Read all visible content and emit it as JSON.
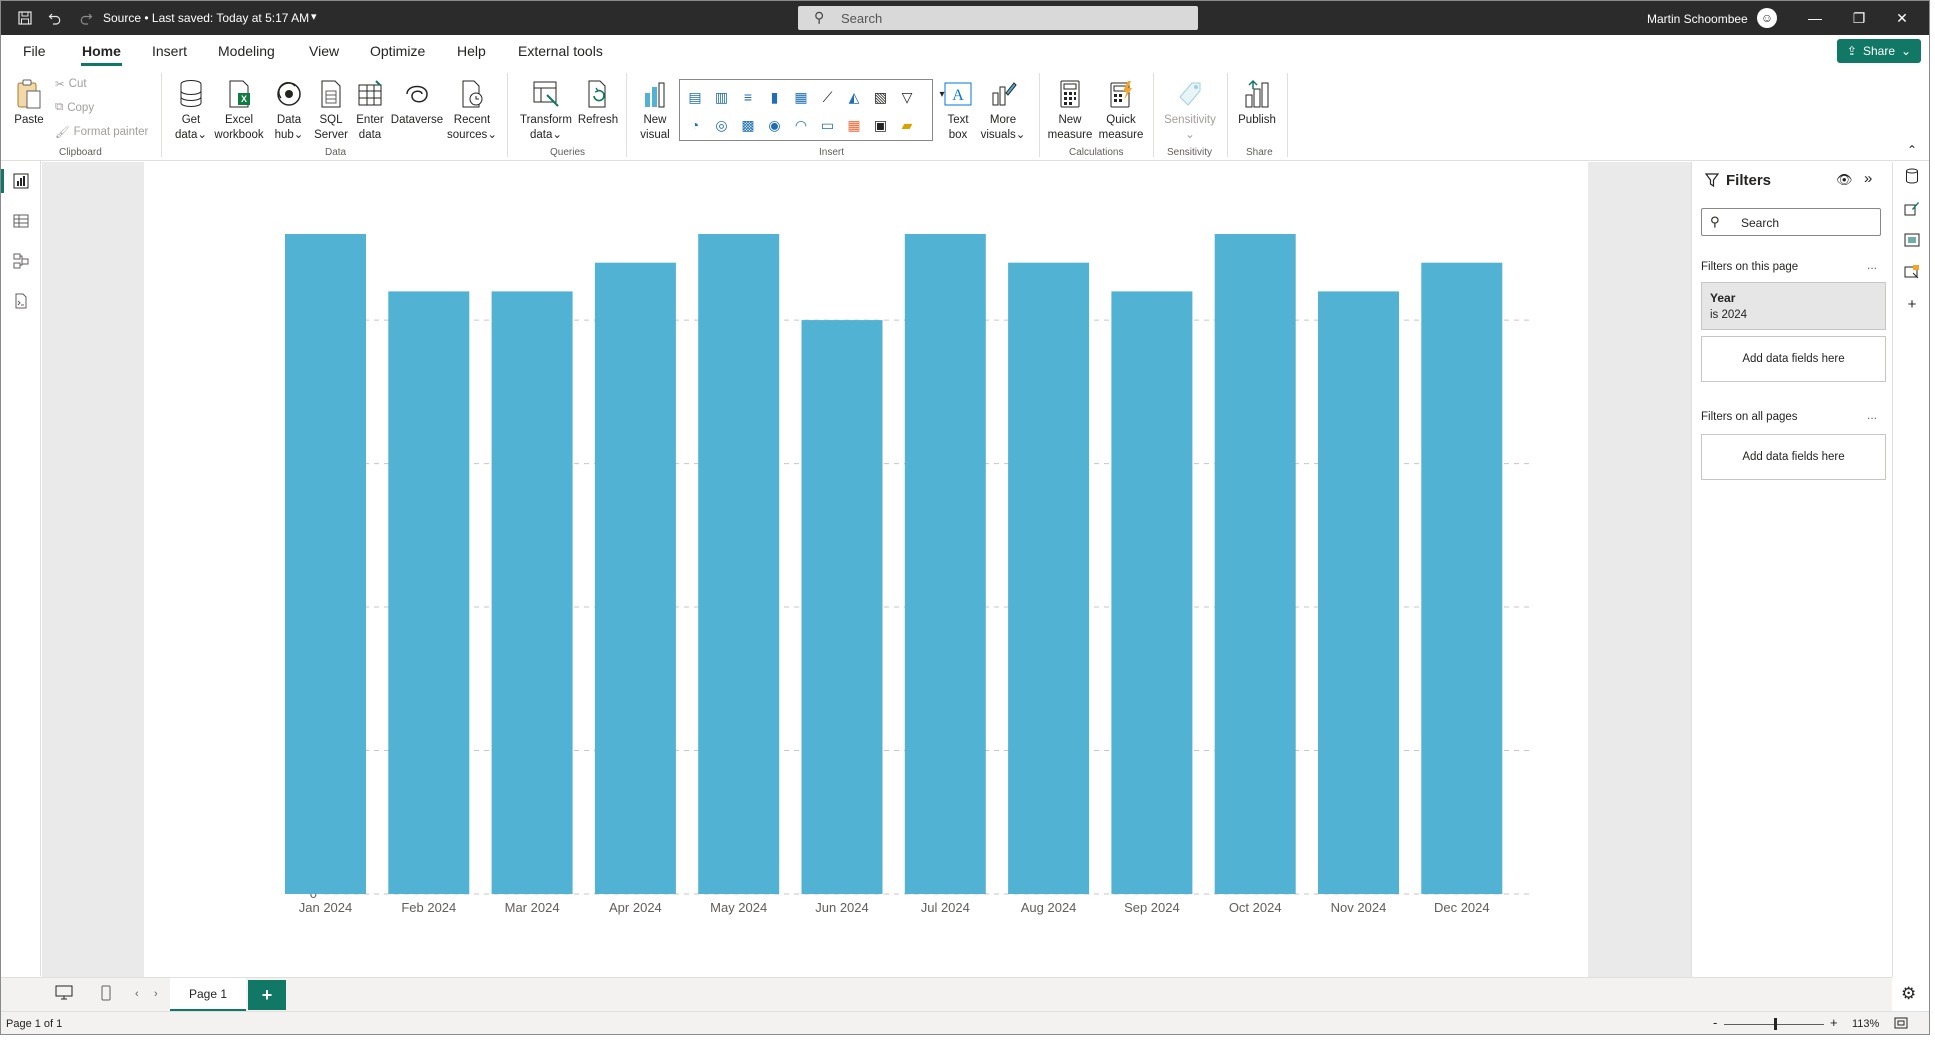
{
  "titlebar": {
    "title": "Source • Last saved: Today at 5:17 AM",
    "search_placeholder": "Search",
    "user_name": "Martin Schoombee"
  },
  "menu": {
    "tabs": [
      "File",
      "Home",
      "Insert",
      "Modeling",
      "View",
      "Optimize",
      "Help",
      "External tools"
    ],
    "active": "Home",
    "share_label": "Share"
  },
  "ribbon": {
    "clipboard": {
      "paste": "Paste",
      "cut": "Cut",
      "copy": "Copy",
      "format_painter": "Format painter",
      "group": "Clipboard"
    },
    "data": {
      "get_data": [
        "Get",
        "data"
      ],
      "excel": [
        "Excel",
        "workbook"
      ],
      "data_hub": [
        "Data",
        "hub"
      ],
      "sql": [
        "SQL",
        "Server"
      ],
      "enter": [
        "Enter",
        "data"
      ],
      "dataverse": [
        "Dataverse"
      ],
      "recent": [
        "Recent",
        "sources"
      ],
      "group": "Data"
    },
    "queries": {
      "transform": [
        "Transform",
        "data"
      ],
      "refresh": [
        "Refresh"
      ],
      "group": "Queries"
    },
    "insert": {
      "new_visual": [
        "New",
        "visual"
      ],
      "text_box": [
        "Text",
        "box"
      ],
      "more_visuals": [
        "More",
        "visuals"
      ],
      "group": "Insert"
    },
    "calculations": {
      "new_measure": [
        "New",
        "measure"
      ],
      "quick_measure": [
        "Quick",
        "measure"
      ],
      "group": "Calculations"
    },
    "sensitivity": {
      "label": [
        "Sensitivity"
      ],
      "group": "Sensitivity"
    },
    "share": {
      "publish": [
        "Publish"
      ],
      "group": "Share"
    }
  },
  "chart_data": {
    "type": "bar",
    "categories": [
      "Jan 2024",
      "Feb 2024",
      "Mar 2024",
      "Apr 2024",
      "May 2024",
      "Jun 2024",
      "Jul 2024",
      "Aug 2024",
      "Sep 2024",
      "Oct 2024",
      "Nov 2024",
      "Dec 2024"
    ],
    "values": [
      23,
      21,
      21,
      22,
      23,
      20,
      23,
      22,
      21,
      23,
      21,
      22
    ],
    "y_ticks": [
      0,
      5,
      10,
      15,
      20
    ],
    "ylim": [
      0,
      23
    ],
    "title": "",
    "xlabel": "",
    "ylabel": "",
    "grid": "dashed horizontal",
    "bar_color": "#51b2d4"
  },
  "filters": {
    "title": "Filters",
    "search_placeholder": "Search",
    "on_this_page": "Filters on this page",
    "year_card_title": "Year",
    "year_card_value": "is 2024",
    "add_fields": "Add data fields here",
    "on_all_pages": "Filters on all pages",
    "more": "..."
  },
  "pages": {
    "tab_label": "Page 1",
    "add_label": "+"
  },
  "status": {
    "page_info": "Page 1 of 1",
    "zoom": "113%",
    "zoom_fraction": 0.51
  },
  "colors": {
    "accent": "#117865",
    "titlebar": "#2b2b2b"
  }
}
